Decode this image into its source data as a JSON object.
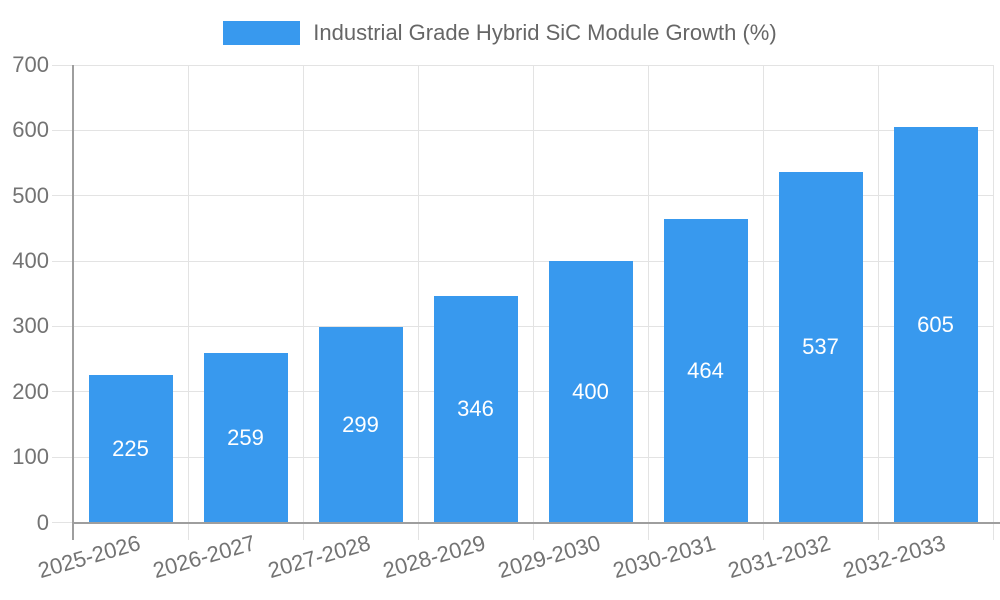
{
  "colors": {
    "bar": "#3899ee",
    "grid": "#e3e3e3",
    "axis": "#9e9e9e",
    "tick_label": "#737373",
    "legend_text": "#666666",
    "value_label": "#ffffff",
    "background": "#ffffff"
  },
  "chart_data": {
    "type": "bar",
    "title": "",
    "xlabel": "",
    "ylabel": "",
    "categories": [
      "2025-2026",
      "2026-2027",
      "2027-2028",
      "2028-2029",
      "2029-2030",
      "2030-2031",
      "2031-2032",
      "2032-2033"
    ],
    "series": [
      {
        "name": "Industrial Grade Hybrid SiC Module Growth (%)",
        "values": [
          225,
          259,
          299,
          346,
          400,
          464,
          537,
          605
        ]
      }
    ],
    "ylim": [
      0,
      700
    ],
    "yticks": [
      0,
      100,
      200,
      300,
      400,
      500,
      600,
      700
    ],
    "grid": true,
    "legend_position": "top-center",
    "value_label_position": "inside-center",
    "x_label_rotation_deg": -16
  }
}
